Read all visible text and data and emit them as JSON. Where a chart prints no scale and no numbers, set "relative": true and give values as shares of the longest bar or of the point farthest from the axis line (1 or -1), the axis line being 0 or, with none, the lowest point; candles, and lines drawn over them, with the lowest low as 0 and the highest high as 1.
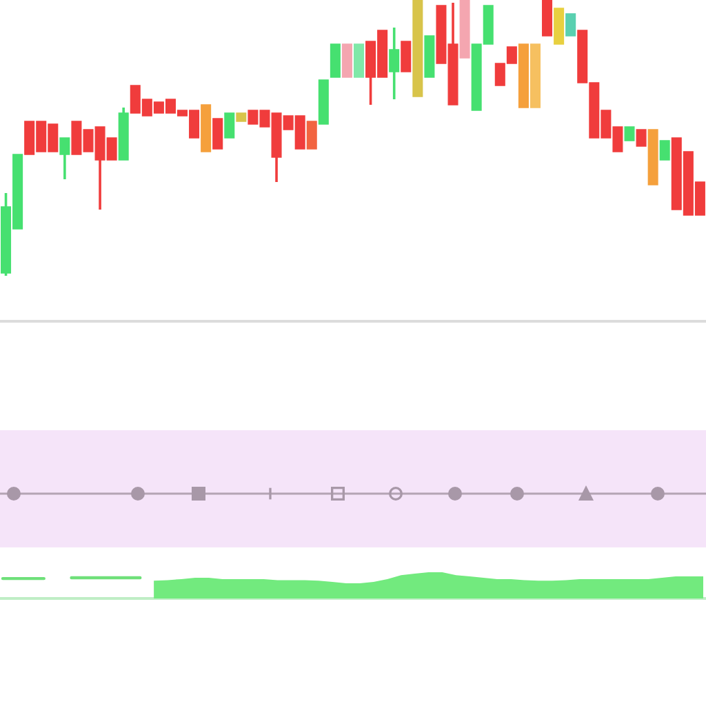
{
  "chart_data": [
    {
      "type": "candlestick",
      "relative": true,
      "categories": [
        null,
        null,
        null,
        null,
        null,
        null,
        null,
        null,
        null,
        null,
        null,
        null,
        null,
        null,
        null,
        null,
        null,
        null,
        null,
        null,
        null,
        null,
        null,
        null,
        null,
        null,
        null,
        null,
        null,
        null,
        null,
        null,
        null,
        null,
        null,
        null,
        null,
        null,
        null,
        null,
        null,
        null,
        null,
        null,
        null,
        null,
        null,
        null,
        null,
        null,
        null,
        null,
        null,
        null,
        null,
        null,
        null,
        null,
        null,
        null
      ],
      "ohlc": [
        [
          0.01,
          0.3,
          0.0,
          0.25
        ],
        [
          0.17,
          0.44,
          0.17,
          0.44
        ],
        [
          0.56,
          0.56,
          0.44,
          0.44
        ],
        [
          0.56,
          0.56,
          0.45,
          0.45
        ],
        [
          0.55,
          0.55,
          0.45,
          0.45
        ],
        [
          0.44,
          0.5,
          0.35,
          0.5
        ],
        [
          0.56,
          0.56,
          0.44,
          0.44
        ],
        [
          0.53,
          0.53,
          0.45,
          0.45
        ],
        [
          0.54,
          0.54,
          0.24,
          0.42
        ],
        [
          0.5,
          0.5,
          0.42,
          0.42
        ],
        [
          0.42,
          0.61,
          0.42,
          0.59
        ],
        [
          0.69,
          0.69,
          0.59,
          0.59
        ],
        [
          0.64,
          0.64,
          0.58,
          0.58
        ],
        [
          0.63,
          0.63,
          0.59,
          0.59
        ],
        [
          0.64,
          0.64,
          0.59,
          0.59
        ],
        [
          0.6,
          0.6,
          0.58,
          0.58
        ],
        [
          0.6,
          0.6,
          0.5,
          0.5
        ],
        [
          0.62,
          0.62,
          0.45,
          0.45
        ],
        [
          0.57,
          0.57,
          0.46,
          0.46
        ],
        [
          0.5,
          0.59,
          0.5,
          0.59
        ],
        [
          0.56,
          0.59,
          0.56,
          0.59
        ],
        [
          0.6,
          0.6,
          0.55,
          0.55
        ],
        [
          0.6,
          0.6,
          0.54,
          0.54
        ],
        [
          0.59,
          0.59,
          0.34,
          0.43
        ],
        [
          0.58,
          0.58,
          0.53,
          0.53
        ],
        [
          0.58,
          0.58,
          0.46,
          0.46
        ],
        [
          0.56,
          0.56,
          0.46,
          0.46
        ],
        [
          0.55,
          0.71,
          0.55,
          0.71
        ],
        [
          0.72,
          0.84,
          0.72,
          0.84
        ],
        [
          0.84,
          0.84,
          0.72,
          0.72
        ],
        [
          0.72,
          0.84,
          0.72,
          0.84
        ],
        [
          0.85,
          0.85,
          0.62,
          0.72
        ],
        [
          0.89,
          0.89,
          0.72,
          0.72
        ],
        [
          0.74,
          0.9,
          0.64,
          0.82
        ],
        [
          0.85,
          0.85,
          0.74,
          0.74
        ],
        [
          0.65,
          1.0,
          0.65,
          1.0
        ],
        [
          0.72,
          0.87,
          0.72,
          0.87
        ],
        [
          0.98,
          0.98,
          0.77,
          0.77
        ],
        [
          0.84,
          0.99,
          0.62,
          0.62
        ],
        [
          1.0,
          1.0,
          0.79,
          0.79
        ],
        [
          0.6,
          0.84,
          0.6,
          0.84
        ],
        [
          0.84,
          0.98,
          0.84,
          0.98
        ],
        [
          0.77,
          0.77,
          0.69,
          0.69
        ],
        [
          0.83,
          0.83,
          0.77,
          0.77
        ],
        [
          0.84,
          0.84,
          0.61,
          0.61
        ],
        [
          0.84,
          0.84,
          0.61,
          0.61
        ],
        [
          1.0,
          1.0,
          0.87,
          0.87
        ],
        [
          0.84,
          0.97,
          0.84,
          0.97
        ],
        [
          0.87,
          0.95,
          0.87,
          0.95
        ],
        [
          0.89,
          0.89,
          0.7,
          0.7
        ],
        [
          0.7,
          0.7,
          0.5,
          0.5
        ],
        [
          0.6,
          0.6,
          0.5,
          0.5
        ],
        [
          0.54,
          0.54,
          0.45,
          0.45
        ],
        [
          0.49,
          0.54,
          0.49,
          0.54
        ],
        [
          0.53,
          0.53,
          0.47,
          0.47
        ],
        [
          0.53,
          0.53,
          0.33,
          0.33
        ],
        [
          0.42,
          0.49,
          0.42,
          0.49
        ],
        [
          0.5,
          0.5,
          0.24,
          0.24
        ],
        [
          0.45,
          0.45,
          0.22,
          0.22
        ],
        [
          0.34,
          0.34,
          0.22,
          0.22
        ]
      ],
      "colors": [
        "#46e070",
        "#46e070",
        "#f03c3c",
        "#f03c3c",
        "#f03c3c",
        "#46e070",
        "#f03c3c",
        "#f03c3c",
        "#f03c3c",
        "#f03c3c",
        "#46e070",
        "#f03c3c",
        "#f03c3c",
        "#f03c3c",
        "#f03c3c",
        "#f03c3c",
        "#f03c3c",
        "#f5a03c",
        "#f03c3c",
        "#46e070",
        "#d8c44a",
        "#f03c3c",
        "#f03c3c",
        "#f03c3c",
        "#f03c3c",
        "#f03c3c",
        "#f26440",
        "#46e070",
        "#46e070",
        "#f4a6b0",
        "#80e8a8",
        "#f03c3c",
        "#f03c3c",
        "#46e070",
        "#f03c3c",
        "#d8c44a",
        "#46e070",
        "#f03c3c",
        "#f03c3c",
        "#f4a6b0",
        "#46e070",
        "#46e070",
        "#f03c3c",
        "#f03c3c",
        "#f5a03c",
        "#f6c060",
        "#f03c3c",
        "#e8d040",
        "#5ad0b0",
        "#f03c3c",
        "#f03c3c",
        "#f03c3c",
        "#f03c3c",
        "#46e070",
        "#f03c3c",
        "#f5a03c",
        "#46e070",
        "#f03c3c",
        "#f03c3c",
        "#f03c3c"
      ]
    },
    {
      "type": "area",
      "relative": true,
      "categories": [
        null,
        null,
        null,
        null,
        null,
        null,
        null,
        null,
        null,
        null,
        null,
        null,
        null,
        null,
        null,
        null,
        null,
        null,
        null,
        null,
        null,
        null,
        null,
        null,
        null,
        null,
        null,
        null,
        null,
        null,
        null,
        null,
        null,
        null,
        null,
        null,
        null,
        null,
        null,
        null,
        null,
        null,
        null,
        null,
        null,
        null,
        null,
        null,
        null,
        null,
        null,
        null
      ],
      "series": [
        {
          "type": "line",
          "color": "#6fe07a",
          "values": [
            0.76,
            0.76,
            0.76,
            0.76,
            null,
            0.79,
            0.79,
            0.79,
            0.79,
            0.79,
            0.79,
            null,
            null,
            null,
            null,
            null,
            null,
            null,
            null,
            null,
            null,
            null,
            null,
            null,
            null,
            null,
            null,
            null,
            null,
            null,
            null,
            null,
            null,
            null,
            null,
            null,
            null,
            null,
            null,
            null,
            null,
            null,
            null,
            null,
            null,
            null,
            null,
            null,
            null,
            null,
            null,
            null
          ]
        },
        {
          "type": "area",
          "color": "#72ea7e",
          "values": [
            null,
            null,
            null,
            null,
            null,
            null,
            null,
            null,
            null,
            null,
            null,
            0.68,
            0.7,
            0.74,
            0.79,
            0.79,
            0.74,
            0.74,
            0.74,
            0.74,
            0.7,
            0.7,
            0.7,
            0.68,
            0.63,
            0.58,
            0.58,
            0.63,
            0.74,
            0.89,
            0.95,
            1.0,
            1.0,
            0.89,
            0.84,
            0.79,
            0.74,
            0.74,
            0.7,
            0.68,
            0.68,
            0.7,
            0.74,
            0.74,
            0.74,
            0.74,
            0.74,
            0.74,
            0.79,
            0.84,
            0.84,
            0.84
          ]
        }
      ]
    }
  ]
}
